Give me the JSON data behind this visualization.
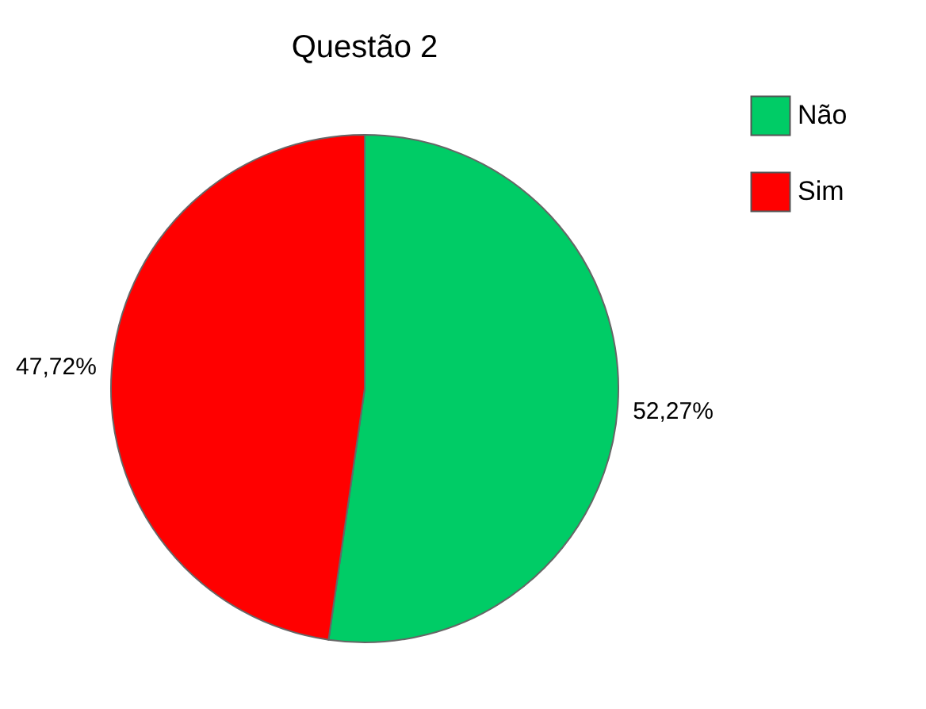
{
  "chart_data": {
    "type": "pie",
    "title": "Questão 2",
    "categories": [
      "Não",
      "Sim"
    ],
    "values": [
      52.27,
      47.72
    ],
    "colors": [
      "#00cc66",
      "#ff0000"
    ],
    "value_labels": [
      "52,27%",
      "47,72%"
    ],
    "legend": "right"
  }
}
